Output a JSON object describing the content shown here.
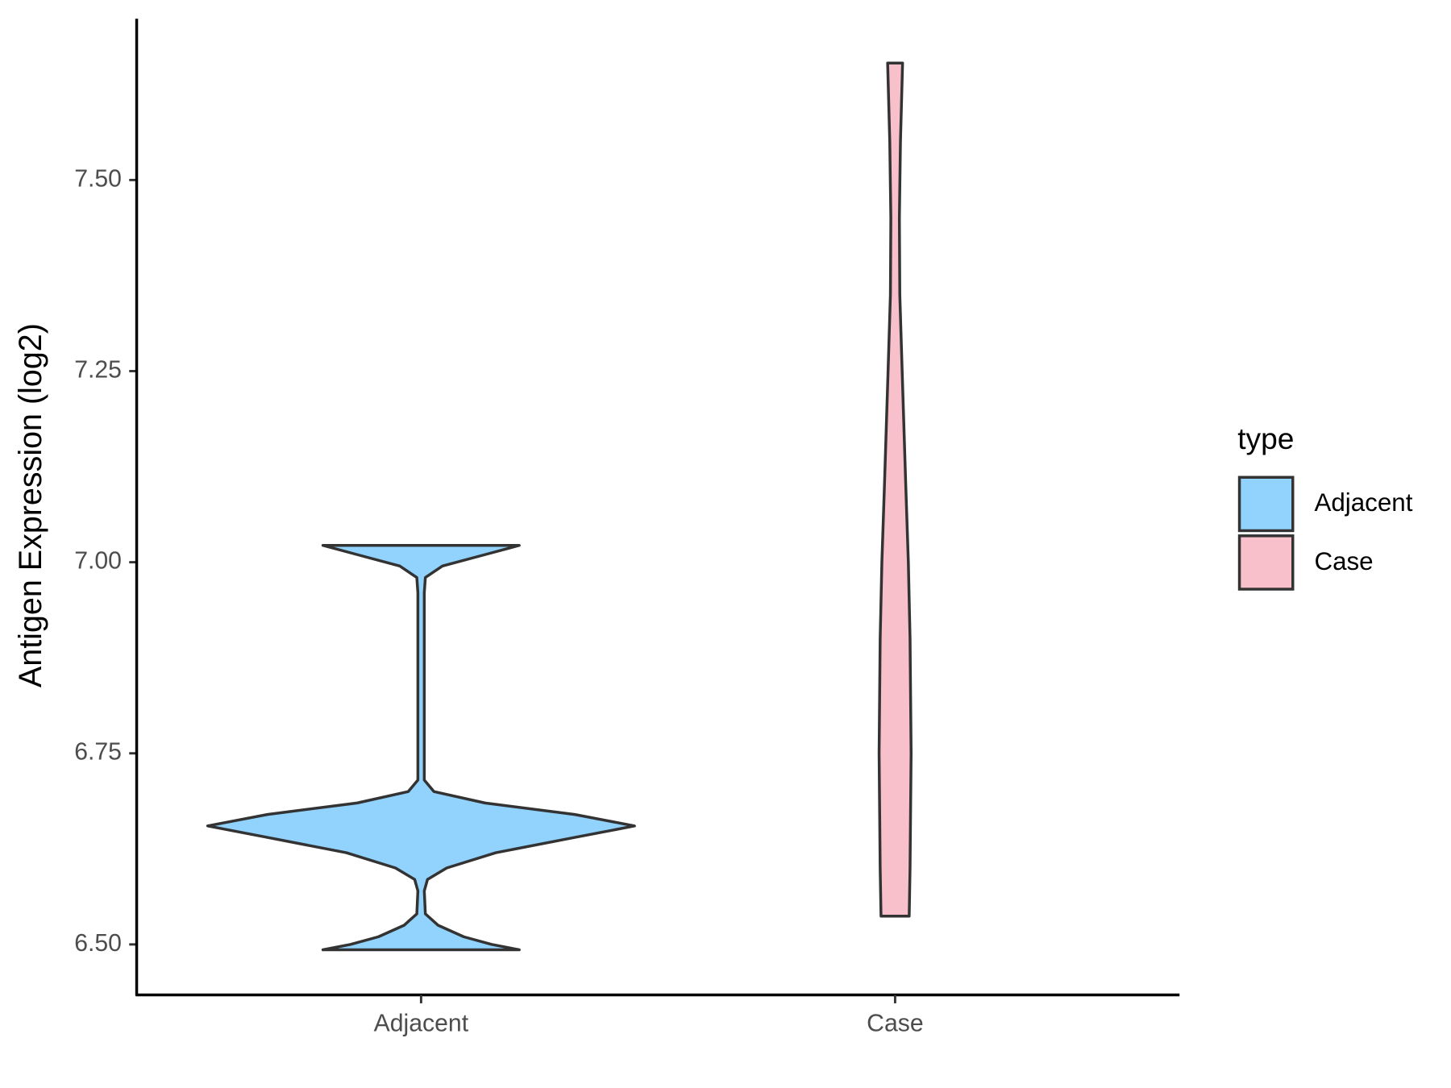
{
  "chart_data": {
    "type": "violin",
    "y_label": "Antigen Expression (log2)",
    "categories": [
      "Adjacent",
      "Case"
    ],
    "series": [
      {
        "name": "Adjacent",
        "color": "#92d3fe",
        "y": [
          6.493,
          6.5,
          6.51,
          6.525,
          6.54,
          6.57,
          6.585,
          6.6,
          6.62,
          6.64,
          6.655,
          6.67,
          6.685,
          6.7,
          6.715,
          6.96,
          6.98,
          6.995,
          7.01,
          7.022
        ],
        "density": [
          0.46,
          0.33,
          0.2,
          0.08,
          0.02,
          0.015,
          0.03,
          0.12,
          0.35,
          0.72,
          1.0,
          0.72,
          0.3,
          0.06,
          0.015,
          0.015,
          0.02,
          0.1,
          0.3,
          0.46
        ]
      },
      {
        "name": "Case",
        "color": "#f7c0cb",
        "y": [
          6.537,
          6.6,
          6.75,
          6.9,
          7.0,
          7.1,
          7.25,
          7.35,
          7.45,
          7.55,
          7.653
        ],
        "density": [
          0.066,
          0.07,
          0.075,
          0.07,
          0.062,
          0.05,
          0.033,
          0.022,
          0.02,
          0.025,
          0.035
        ]
      }
    ],
    "ylim": [
      6.434,
      7.711
    ],
    "yticks": [
      {
        "value": 6.5,
        "label": "6.50"
      },
      {
        "value": 6.75,
        "label": "6.75"
      },
      {
        "value": 7.0,
        "label": "7.00"
      },
      {
        "value": 7.25,
        "label": "7.25"
      },
      {
        "value": 7.5,
        "label": "7.50"
      }
    ],
    "legend_title": "type",
    "legend": "right"
  }
}
